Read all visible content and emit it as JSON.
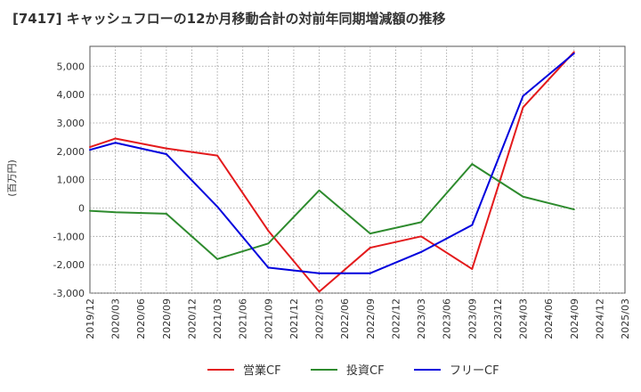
{
  "chart_data": {
    "type": "line",
    "title": "[7417]  キャッシュフローの12か月移動合計の対前年同期増減額の推移",
    "ylabel": "(百万円)",
    "xlabel": "",
    "ylim": [
      -3000,
      5700
    ],
    "yticks": [
      -3000,
      -2000,
      -1000,
      0,
      1000,
      2000,
      3000,
      4000,
      5000
    ],
    "ytick_labels": [
      "-3,000",
      "-2,000",
      "-1,000",
      "0",
      "1,000",
      "2,000",
      "3,000",
      "4,000",
      "5,000"
    ],
    "categories": [
      "2019/12",
      "2020/03",
      "2020/06",
      "2020/09",
      "2020/12",
      "2021/03",
      "2021/06",
      "2021/09",
      "2021/12",
      "2022/03",
      "2022/06",
      "2022/09",
      "2022/12",
      "2023/03",
      "2023/06",
      "2023/09",
      "2023/12",
      "2024/03",
      "2024/06",
      "2024/09",
      "2024/12",
      "2025/03"
    ],
    "grid": true,
    "legend_position": "bottom-center",
    "series": [
      {
        "name": "営業CF",
        "color": "#e31a1c",
        "values": [
          2150,
          2450,
          null,
          2100,
          null,
          1850,
          null,
          -800,
          null,
          -2950,
          null,
          -1400,
          null,
          -1000,
          null,
          -2150,
          null,
          3550,
          null,
          5500,
          null,
          null
        ]
      },
      {
        "name": "投資CF",
        "color": "#2e8b2e",
        "values": [
          -100,
          -150,
          null,
          -200,
          null,
          -1800,
          null,
          -1250,
          null,
          620,
          null,
          -900,
          null,
          -500,
          null,
          1550,
          null,
          400,
          null,
          -50,
          null,
          null
        ]
      },
      {
        "name": "フリーCF",
        "color": "#0000dd",
        "values": [
          2050,
          2300,
          null,
          1900,
          null,
          50,
          null,
          -2100,
          null,
          -2300,
          null,
          -2300,
          null,
          -1550,
          null,
          -600,
          null,
          3950,
          null,
          5450,
          null,
          null
        ]
      }
    ]
  }
}
